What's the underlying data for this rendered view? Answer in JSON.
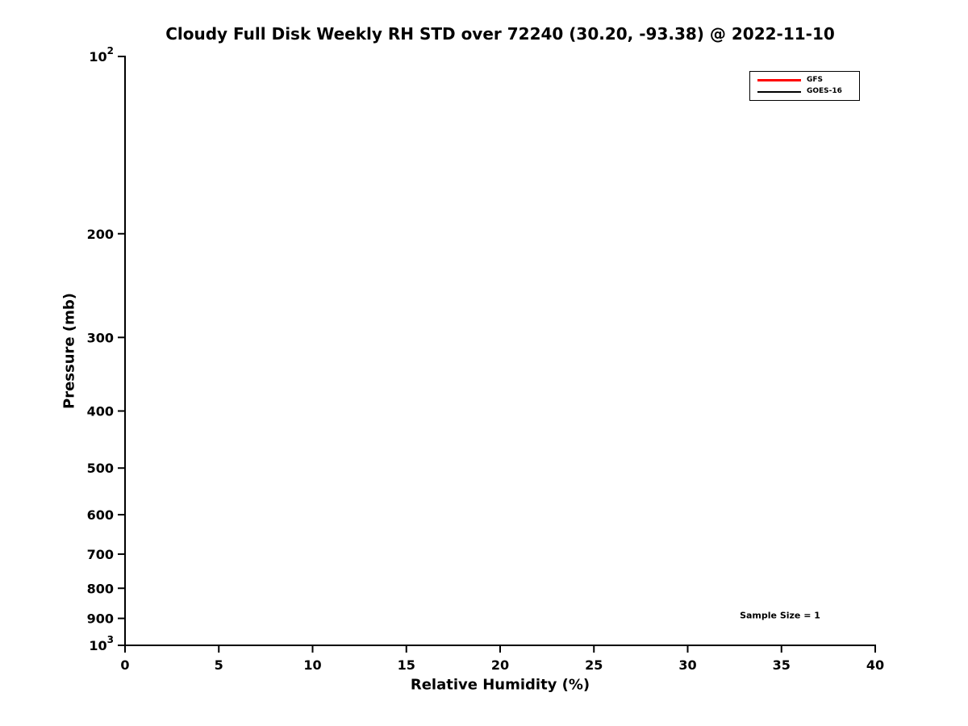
{
  "chart_data": {
    "type": "line",
    "title": "Cloudy Full Disk Weekly RH STD over 72240 (30.20, -93.38) @ 2022-11-10",
    "xlabel": "Relative Humidity (%)",
    "ylabel": "Pressure (mb)",
    "xlim": [
      0,
      40
    ],
    "xticks": [
      0,
      5,
      10,
      15,
      20,
      25,
      30,
      35,
      40
    ],
    "yscale": "log",
    "y_direction": "reversed-pressure-increasing-downward",
    "ylim": [
      100,
      1000
    ],
    "yticks": [
      100,
      200,
      300,
      400,
      500,
      600,
      700,
      800,
      900,
      1000
    ],
    "ytick_labels": [
      "10^2",
      "200",
      "300",
      "400",
      "500",
      "600",
      "700",
      "800",
      "900",
      "10^3"
    ],
    "grid": false,
    "axis_color": "#000000",
    "legend": {
      "position": "top-right",
      "entries": [
        {
          "label": "GFS",
          "color": "#ff0000"
        },
        {
          "label": "GOES-16",
          "color": "#000000"
        }
      ]
    },
    "series": [
      {
        "name": "GFS",
        "color": "#ff0000",
        "x": [],
        "y": []
      },
      {
        "name": "GOES-16",
        "color": "#000000",
        "x": [],
        "y": []
      }
    ],
    "annotations": [
      {
        "text": "Sample Size = 1",
        "x": 34.9,
        "pressure": 890
      }
    ]
  }
}
